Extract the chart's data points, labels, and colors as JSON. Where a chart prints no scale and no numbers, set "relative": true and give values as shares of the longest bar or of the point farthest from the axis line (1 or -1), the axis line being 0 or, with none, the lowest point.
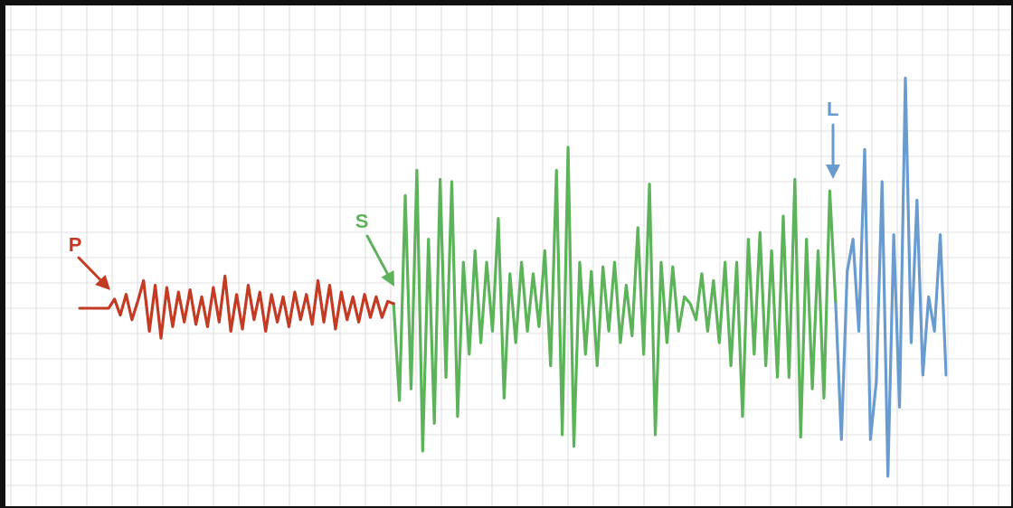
{
  "chart_data": {
    "type": "line",
    "relative": true,
    "grid": true,
    "legend": false,
    "marker": "none",
    "line_style": "solid",
    "categories": [
      null,
      null,
      null,
      null,
      null,
      null,
      null,
      null,
      null,
      null,
      null,
      null,
      null,
      null,
      null,
      null,
      null,
      null,
      null,
      null,
      null,
      null,
      null,
      null,
      null,
      null,
      null,
      null,
      null,
      null,
      null,
      null,
      null,
      null,
      null,
      null,
      null,
      null,
      null,
      null,
      null,
      null,
      null,
      null,
      null,
      null,
      null,
      null,
      null,
      null,
      null,
      null,
      null,
      null,
      null,
      null,
      null,
      null,
      null,
      null,
      null,
      null,
      null,
      null,
      null,
      null,
      null,
      null,
      null,
      null,
      null,
      null,
      null,
      null,
      null,
      null,
      null,
      null,
      null,
      null,
      null,
      null,
      null,
      null,
      null,
      null,
      null,
      null,
      null,
      null,
      null,
      null,
      null,
      null,
      null,
      null,
      null,
      null,
      null,
      null,
      null,
      null,
      null,
      null,
      null,
      null,
      null,
      null,
      null,
      null,
      null,
      null,
      null,
      null,
      null,
      null,
      null,
      null,
      null,
      null,
      null,
      null,
      null,
      null,
      null,
      null,
      null,
      null,
      null,
      null,
      null,
      null,
      null,
      null,
      null,
      null,
      null,
      null,
      null,
      null,
      null,
      null,
      null,
      null,
      null,
      null,
      null,
      null,
      null,
      null
    ],
    "series": [
      {
        "color": "#c23b22",
        "values": [
          0,
          0,
          0,
          0,
          0,
          0,
          0.04,
          -0.03,
          0.06,
          -0.05,
          0.03,
          0.12,
          -0.1,
          0.1,
          -0.13,
          0.09,
          -0.08,
          0.07,
          -0.06,
          0.08,
          -0.07,
          0.05,
          -0.08,
          0.09,
          -0.06,
          0.14,
          -0.1,
          0.06,
          -0.09,
          0.1,
          -0.05,
          0.07,
          -0.1,
          0.06,
          -0.06,
          0.05,
          -0.08,
          0.07,
          -0.05,
          0.06,
          -0.07,
          0.12,
          -0.06,
          0.1,
          -0.09,
          0.07,
          -0.05,
          0.05,
          -0.06,
          0.06,
          -0.04,
          0.05,
          -0.04,
          0.03,
          0.02,
          null,
          null,
          null,
          null,
          null,
          null,
          null,
          null,
          null,
          null,
          null,
          null,
          null,
          null,
          null,
          null,
          null,
          null,
          null,
          null,
          null,
          null,
          null,
          null,
          null,
          null,
          null,
          null,
          null,
          null,
          null,
          null,
          null,
          null,
          null,
          null,
          null,
          null,
          null,
          null,
          null,
          null,
          null,
          null,
          null,
          null,
          null,
          null,
          null,
          null,
          null,
          null,
          null,
          null,
          null,
          null,
          null,
          null,
          null,
          null,
          null,
          null,
          null,
          null,
          null,
          null,
          null,
          null,
          null,
          null,
          null,
          null,
          null,
          null,
          null,
          null,
          null,
          null,
          null,
          null,
          null,
          null,
          null,
          null,
          null,
          null,
          null,
          null,
          null,
          null,
          null,
          null,
          null,
          null,
          null
        ]
      },
      {
        "color": "#5db35a",
        "values": [
          null,
          null,
          null,
          null,
          null,
          null,
          null,
          null,
          null,
          null,
          null,
          null,
          null,
          null,
          null,
          null,
          null,
          null,
          null,
          null,
          null,
          null,
          null,
          null,
          null,
          null,
          null,
          null,
          null,
          null,
          null,
          null,
          null,
          null,
          null,
          null,
          null,
          null,
          null,
          null,
          null,
          null,
          null,
          null,
          null,
          null,
          null,
          null,
          null,
          null,
          null,
          null,
          null,
          null,
          0.02,
          -0.4,
          0.49,
          -0.35,
          0.6,
          -0.62,
          0.3,
          -0.5,
          0.56,
          -0.3,
          0.55,
          -0.47,
          0.2,
          -0.2,
          0.25,
          -0.15,
          0.2,
          -0.1,
          0.39,
          -0.39,
          0.15,
          -0.15,
          0.2,
          -0.1,
          0.15,
          -0.08,
          0.25,
          -0.25,
          0.6,
          -0.55,
          0.7,
          -0.6,
          0.2,
          -0.2,
          0.16,
          -0.25,
          0.18,
          -0.1,
          0.2,
          -0.15,
          0.1,
          -0.12,
          0.35,
          -0.2,
          0.54,
          -0.55,
          0.2,
          -0.15,
          0.18,
          -0.1,
          0.05,
          0.02,
          -0.05,
          0.15,
          -0.1,
          0.12,
          -0.15,
          0.2,
          -0.25,
          0.2,
          -0.47,
          0.3,
          -0.2,
          0.33,
          -0.25,
          0.25,
          -0.3,
          0.4,
          -0.3,
          0.56,
          -0.56,
          0.3,
          -0.35,
          0.25,
          -0.39,
          0.51,
          0.03,
          null,
          null,
          null,
          null,
          null,
          null,
          null,
          null,
          null,
          null,
          null,
          null,
          null,
          null,
          null,
          null,
          null,
          null,
          null
        ]
      },
      {
        "color": "#6a9bcf",
        "values": [
          null,
          null,
          null,
          null,
          null,
          null,
          null,
          null,
          null,
          null,
          null,
          null,
          null,
          null,
          null,
          null,
          null,
          null,
          null,
          null,
          null,
          null,
          null,
          null,
          null,
          null,
          null,
          null,
          null,
          null,
          null,
          null,
          null,
          null,
          null,
          null,
          null,
          null,
          null,
          null,
          null,
          null,
          null,
          null,
          null,
          null,
          null,
          null,
          null,
          null,
          null,
          null,
          null,
          null,
          null,
          null,
          null,
          null,
          null,
          null,
          null,
          null,
          null,
          null,
          null,
          null,
          null,
          null,
          null,
          null,
          null,
          null,
          null,
          null,
          null,
          null,
          null,
          null,
          null,
          null,
          null,
          null,
          null,
          null,
          null,
          null,
          null,
          null,
          null,
          null,
          null,
          null,
          null,
          null,
          null,
          null,
          null,
          null,
          null,
          null,
          null,
          null,
          null,
          null,
          null,
          null,
          null,
          null,
          null,
          null,
          null,
          null,
          null,
          null,
          null,
          null,
          null,
          null,
          null,
          null,
          null,
          null,
          null,
          null,
          null,
          null,
          null,
          null,
          null,
          null,
          0.03,
          -0.57,
          0.16,
          0.3,
          -0.1,
          0.69,
          -0.57,
          -0.32,
          0.55,
          -0.73,
          0.32,
          -0.43,
          1.0,
          -0.15,
          0.47,
          -0.29,
          0.05,
          -0.1,
          0.32,
          -0.29
        ]
      }
    ],
    "annotations": [
      "P",
      "S",
      "L"
    ]
  }
}
